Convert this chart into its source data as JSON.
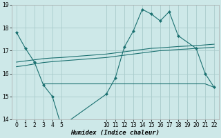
{
  "bg_color": "#cde8e8",
  "grid_color": "#aacccc",
  "line_color": "#1a7070",
  "xlabel": "Humidex (Indice chaleur)",
  "ylim": [
    14,
    19
  ],
  "xlim": [
    -0.5,
    22.5
  ],
  "yticks": [
    14,
    15,
    16,
    17,
    18,
    19
  ],
  "xticks": [
    0,
    1,
    2,
    3,
    4,
    5,
    10,
    11,
    12,
    13,
    14,
    15,
    16,
    17,
    18,
    19,
    20,
    21,
    22
  ],
  "line1_x": [
    0,
    1,
    2,
    3,
    4,
    5,
    10,
    11,
    12,
    13,
    14,
    15,
    16,
    17,
    18,
    20,
    21,
    22
  ],
  "line1_y": [
    17.8,
    17.1,
    16.5,
    15.5,
    15.0,
    13.7,
    15.1,
    15.8,
    17.15,
    17.85,
    18.8,
    18.6,
    18.3,
    18.7,
    17.65,
    17.1,
    16.0,
    15.4
  ],
  "line2_x": [
    3,
    4,
    10,
    11,
    12,
    13,
    14,
    15,
    16,
    17,
    18,
    19,
    20,
    21,
    22
  ],
  "line2_y": [
    15.55,
    15.55,
    15.55,
    15.55,
    15.55,
    15.55,
    15.55,
    15.55,
    15.55,
    15.55,
    15.55,
    15.55,
    15.55,
    15.55,
    15.4
  ],
  "line3_x": [
    0,
    1,
    2,
    3,
    4,
    5,
    10,
    11,
    12,
    13,
    14,
    15,
    16,
    17,
    18,
    19,
    20,
    21,
    22
  ],
  "line3_y": [
    16.5,
    16.55,
    16.6,
    16.65,
    16.68,
    16.7,
    16.85,
    16.9,
    16.95,
    17.0,
    17.05,
    17.1,
    17.12,
    17.15,
    17.18,
    17.2,
    17.22,
    17.25,
    17.28
  ],
  "line4_x": [
    0,
    1,
    2,
    3,
    4,
    5,
    10,
    11,
    12,
    13,
    14,
    15,
    16,
    17,
    18,
    19,
    20,
    21,
    22
  ],
  "line4_y": [
    16.3,
    16.35,
    16.42,
    16.48,
    16.52,
    16.55,
    16.7,
    16.75,
    16.8,
    16.85,
    16.9,
    16.95,
    17.0,
    17.02,
    17.05,
    17.07,
    17.1,
    17.12,
    17.15
  ],
  "figwidth": 3.2,
  "figheight": 2.0,
  "dpi": 100
}
